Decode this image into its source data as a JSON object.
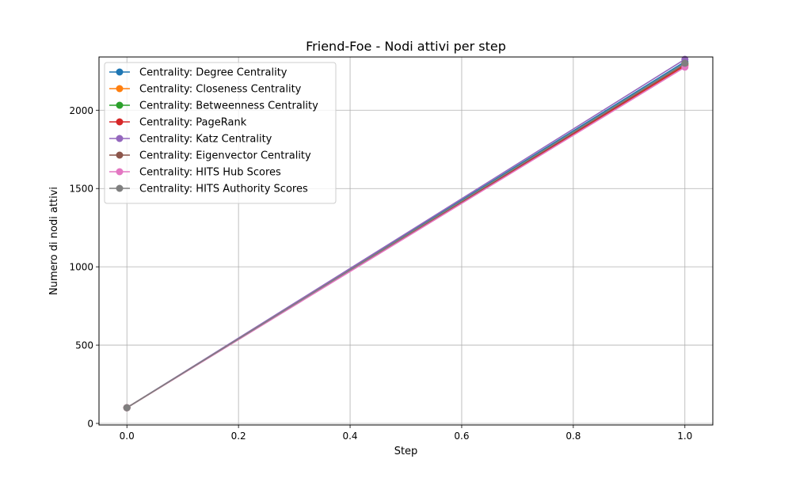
{
  "chart_data": {
    "type": "line",
    "title": "Friend-Foe - Nodi attivi per step",
    "xlabel": "Step",
    "ylabel": "Numero di nodi attivi",
    "x": [
      0.0,
      1.0
    ],
    "xlim": [
      -0.05,
      1.05
    ],
    "ylim": [
      -10,
      2340
    ],
    "xticks": [
      0.0,
      0.2,
      0.4,
      0.6,
      0.8,
      1.0
    ],
    "xtick_labels": [
      "0.0",
      "0.2",
      "0.4",
      "0.6",
      "0.8",
      "1.0"
    ],
    "yticks": [
      0,
      500,
      1000,
      1500,
      2000
    ],
    "ytick_labels": [
      "0",
      "500",
      "1000",
      "1500",
      "2000"
    ],
    "grid": true,
    "legend_position": "upper-left",
    "series": [
      {
        "name": "Centrality: Degree Centrality",
        "color": "#1f77b4",
        "values": [
          100,
          2310
        ]
      },
      {
        "name": "Centrality: Closeness Centrality",
        "color": "#ff7f0e",
        "values": [
          100,
          2290
        ]
      },
      {
        "name": "Centrality: Betweenness Centrality",
        "color": "#2ca02c",
        "values": [
          100,
          2300
        ]
      },
      {
        "name": "Centrality: PageRank",
        "color": "#d62728",
        "values": [
          100,
          2285
        ]
      },
      {
        "name": "Centrality: Katz Centrality",
        "color": "#9467bd",
        "values": [
          100,
          2325
        ]
      },
      {
        "name": "Centrality: Eigenvector Centrality",
        "color": "#8c564b",
        "values": [
          100,
          2295
        ]
      },
      {
        "name": "Centrality: HITS Hub Scores",
        "color": "#e377c2",
        "values": [
          100,
          2275
        ]
      },
      {
        "name": "Centrality: HITS Authority Scores",
        "color": "#7f7f7f",
        "values": [
          100,
          2300
        ]
      }
    ]
  }
}
